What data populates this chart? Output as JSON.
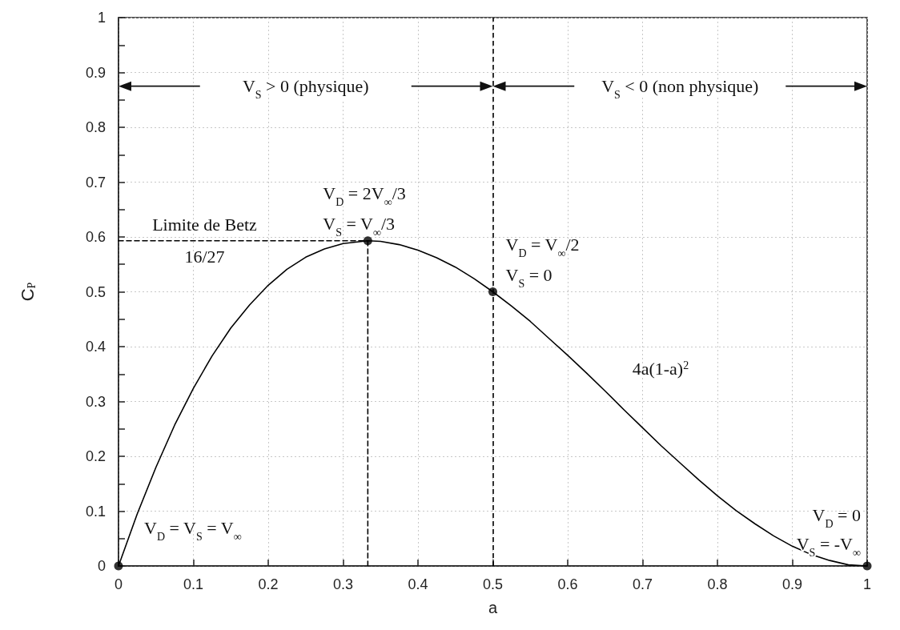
{
  "chart_data": {
    "type": "line",
    "xlabel": "a",
    "ylabel": "C$_{P}$",
    "x": [
      0,
      0.025,
      0.05,
      0.075,
      0.1,
      0.125,
      0.15,
      0.175,
      0.2,
      0.225,
      0.25,
      0.275,
      0.3,
      0.333,
      0.35,
      0.375,
      0.4,
      0.425,
      0.45,
      0.475,
      0.5,
      0.525,
      0.55,
      0.575,
      0.6,
      0.625,
      0.65,
      0.675,
      0.7,
      0.725,
      0.75,
      0.775,
      0.8,
      0.825,
      0.85,
      0.875,
      0.9,
      0.925,
      0.95,
      0.975,
      1
    ],
    "series": [
      {
        "color": "#000000",
        "marker": "none",
        "line_style": "solid",
        "values": [
          0,
          0.095,
          0.18,
          0.257,
          0.324,
          0.383,
          0.434,
          0.476,
          0.512,
          0.541,
          0.563,
          0.578,
          0.588,
          0.593,
          0.592,
          0.586,
          0.576,
          0.562,
          0.545,
          0.524,
          0.5,
          0.474,
          0.446,
          0.415,
          0.384,
          0.352,
          0.319,
          0.285,
          0.252,
          0.219,
          0.188,
          0.157,
          0.128,
          0.101,
          0.077,
          0.055,
          0.036,
          0.021,
          0.01,
          0.002,
          0
        ]
      },
      {
        "color": "#000000",
        "marker": "none",
        "line_style": "dashed",
        "x": [
          0.333,
          0.333
        ],
        "values": [
          0,
          0.593
        ]
      },
      {
        "color": "#000000",
        "marker": "none",
        "line_style": "dashed",
        "x": [
          0,
          0.333
        ],
        "values": [
          0.593,
          0.593
        ]
      },
      {
        "type": "scatter",
        "color": "#000000",
        "marker": "circle",
        "x": [
          0,
          0.333,
          0.5,
          1
        ],
        "values": [
          0,
          0.593,
          0.5,
          0
        ]
      }
    ],
    "ref_lines": [
      {
        "axis": "x",
        "value": 0.5,
        "color": "#000000",
        "line_style": "dashed"
      }
    ],
    "xlim": [
      0,
      1
    ],
    "ylim": [
      0,
      1
    ],
    "xticks": [
      0,
      0.1,
      0.2,
      0.3,
      0.4,
      0.5,
      0.6,
      0.7,
      0.8,
      0.9,
      1
    ],
    "yticks": [
      0,
      0.1,
      0.2,
      0.3,
      0.4,
      0.5,
      0.6,
      0.7,
      0.8,
      0.9,
      1
    ],
    "grid": true,
    "annotations": [
      "V$_{S}$ > 0 (physique)",
      "V$_{S}$ < 0 (non physique)",
      {
        "text": "V$_{D}$ = V$_{S}$ = V$_{∞}$",
        "x": 0,
        "y": 0
      },
      {
        "text": "V$_{D}$ = 2V$_{∞}$/3",
        "x": 0.333,
        "y": 0.593
      },
      {
        "text": "V$_{S}$ = V$_{∞}$/3",
        "x": 0.333,
        "y": 0.593
      },
      {
        "text": "Limite de Betz\n16/27",
        "x": 0.115,
        "y": 0.593
      },
      {
        "text": "V$_{D}$ = V$_{∞}$/2",
        "x": 0.5,
        "y": 0.5
      },
      {
        "text": "V$_{S}$ = 0",
        "x": 0.5,
        "y": 0.5
      },
      "4a(1-a)$^{2}$",
      {
        "text": "V$_{D}$ = 0",
        "x": 1,
        "y": 0
      },
      {
        "text": "V$_{S}$ = -V$_{∞}$",
        "x": 1,
        "y": 0
      }
    ]
  }
}
